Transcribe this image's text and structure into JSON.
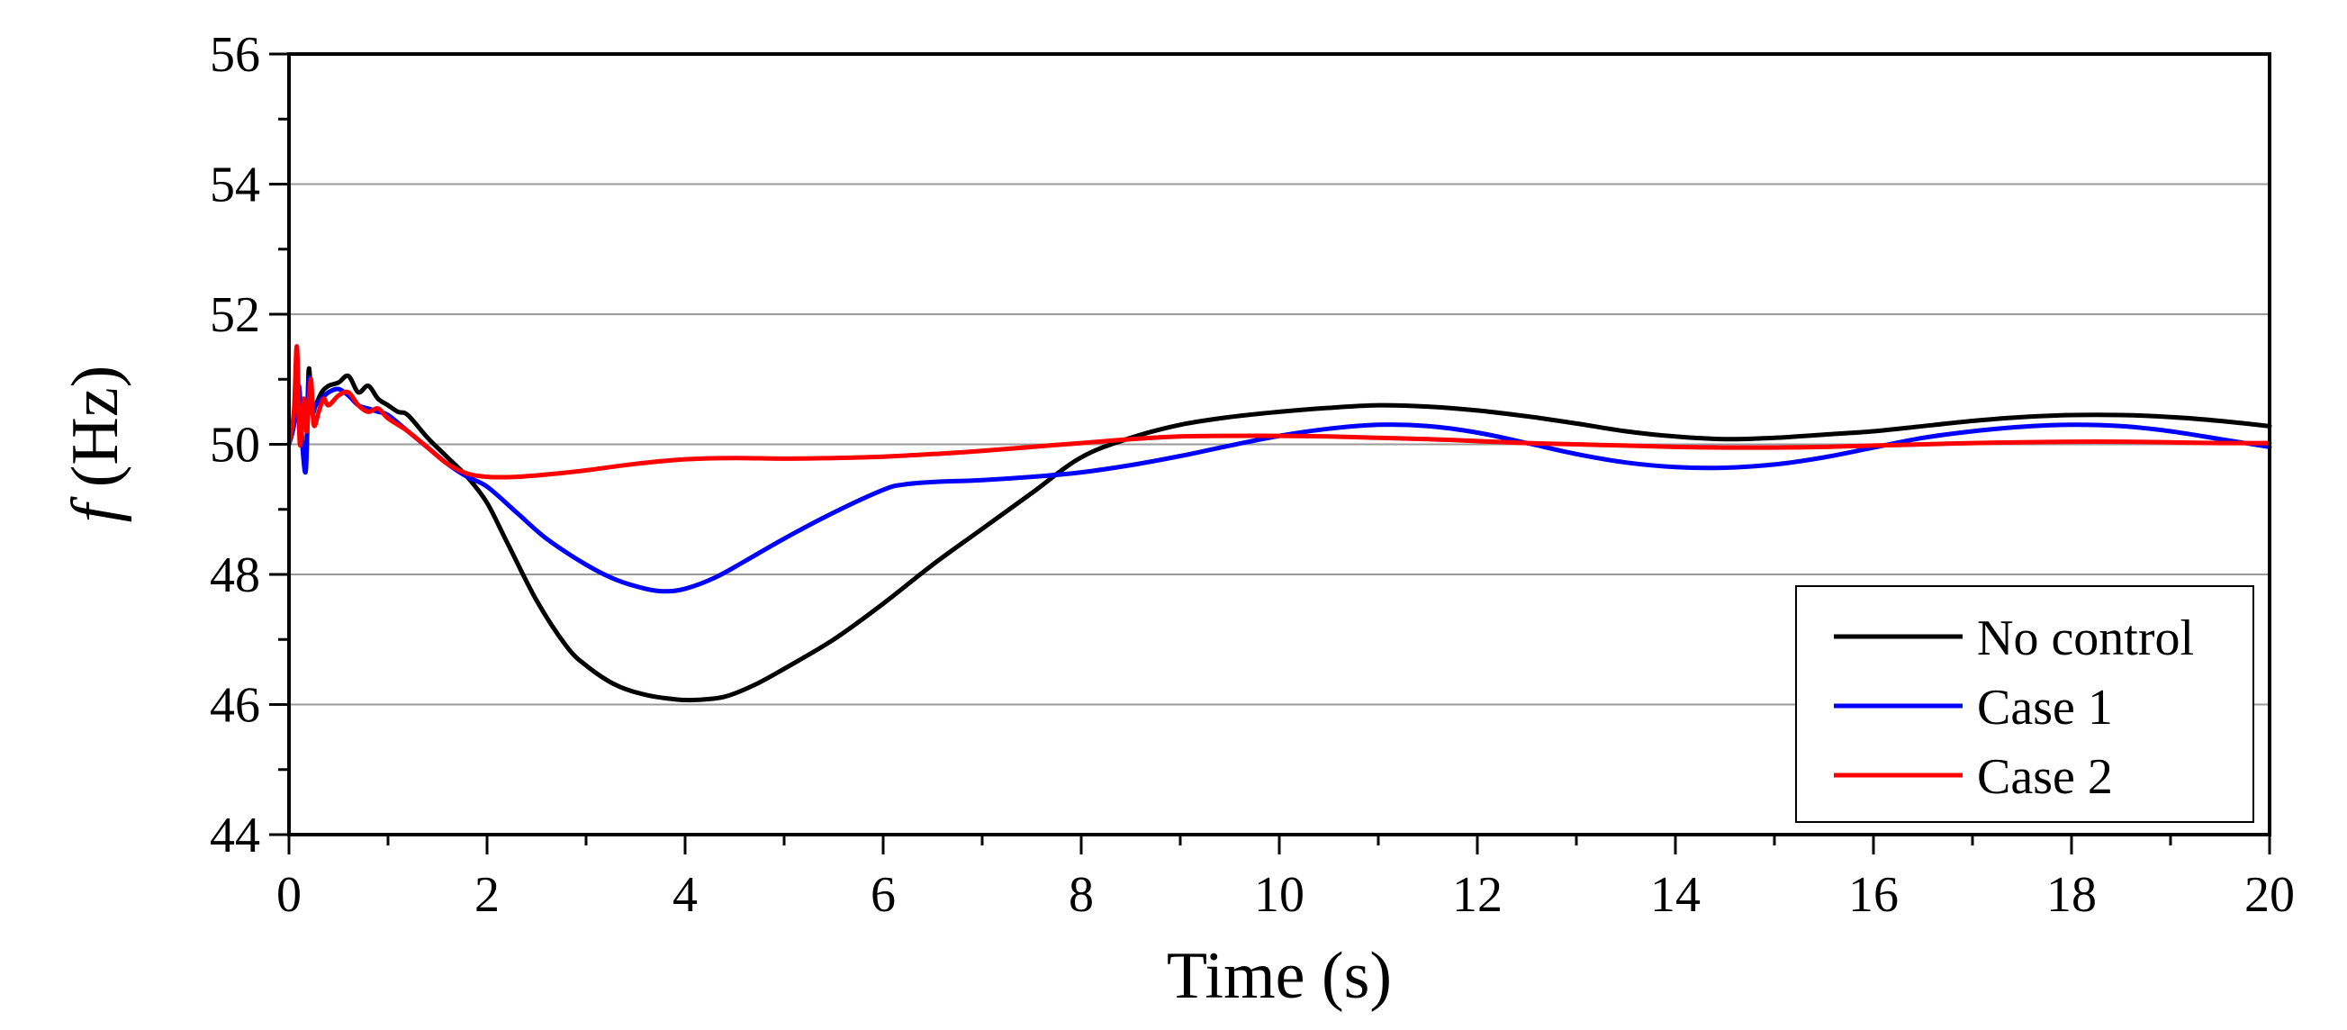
{
  "chart_data": {
    "type": "line",
    "title": "",
    "xlabel": "Time (s)",
    "ylabel_symbol": "f",
    "ylabel_unit": "(Hz)",
    "xlim": [
      0,
      20
    ],
    "ylim": [
      44,
      56
    ],
    "xticks": [
      0,
      2,
      4,
      6,
      8,
      10,
      12,
      14,
      16,
      18,
      20
    ],
    "yticks": [
      44,
      46,
      48,
      50,
      52,
      54,
      56
    ],
    "xtick_labels": [
      "0",
      "2",
      "4",
      "6",
      "8",
      "10",
      "12",
      "14",
      "16",
      "18",
      "20"
    ],
    "ytick_labels": [
      "44",
      "46",
      "48",
      "50",
      "52",
      "54",
      "56"
    ],
    "grid": "horizontal",
    "legend_position": "bottom-right",
    "series": [
      {
        "name": "No control",
        "color": "#000000",
        "x": [
          0,
          0.05,
          0.1,
          0.13,
          0.17,
          0.2,
          0.23,
          0.27,
          0.33,
          0.4,
          0.5,
          0.6,
          0.7,
          0.8,
          0.9,
          1.0,
          1.1,
          1.2,
          1.4,
          1.6,
          1.8,
          2.0,
          2.2,
          2.5,
          2.8,
          3.0,
          3.3,
          3.6,
          3.9,
          4.1,
          4.4,
          4.7,
          5.0,
          5.5,
          6.0,
          6.5,
          7.0,
          7.5,
          8.0,
          8.5,
          9.0,
          9.5,
          10.0,
          10.5,
          11.0,
          11.5,
          12.0,
          12.5,
          13.0,
          13.5,
          14.0,
          14.5,
          15.0,
          15.5,
          16.0,
          16.5,
          17.0,
          17.5,
          18.0,
          18.5,
          19.0,
          19.5,
          20.0
        ],
        "y": [
          50.0,
          50.3,
          50.9,
          50.1,
          49.7,
          51.15,
          50.5,
          50.6,
          50.8,
          50.9,
          50.95,
          51.05,
          50.8,
          50.9,
          50.7,
          50.6,
          50.5,
          50.45,
          50.1,
          49.8,
          49.5,
          49.1,
          48.5,
          47.6,
          46.9,
          46.6,
          46.3,
          46.15,
          46.08,
          46.07,
          46.12,
          46.3,
          46.55,
          47.0,
          47.55,
          48.15,
          48.7,
          49.25,
          49.8,
          50.1,
          50.3,
          50.42,
          50.5,
          50.56,
          50.6,
          50.58,
          50.52,
          50.43,
          50.32,
          50.2,
          50.12,
          50.08,
          50.1,
          50.15,
          50.2,
          50.28,
          50.36,
          50.42,
          50.45,
          50.45,
          50.42,
          50.36,
          50.28
        ]
      },
      {
        "name": "Case 1",
        "color": "#0000ff",
        "x": [
          0,
          0.05,
          0.1,
          0.13,
          0.17,
          0.2,
          0.23,
          0.27,
          0.33,
          0.4,
          0.5,
          0.6,
          0.7,
          0.8,
          0.9,
          1.0,
          1.2,
          1.4,
          1.6,
          1.8,
          2.0,
          2.3,
          2.6,
          3.0,
          3.3,
          3.6,
          3.8,
          4.0,
          4.3,
          4.6,
          5.0,
          5.5,
          6.0,
          6.2,
          6.5,
          7.0,
          7.5,
          8.0,
          8.5,
          9.0,
          9.5,
          10.0,
          10.5,
          11.0,
          11.5,
          12.0,
          12.5,
          13.0,
          13.5,
          14.0,
          14.5,
          15.0,
          15.5,
          16.0,
          16.5,
          17.0,
          17.5,
          18.0,
          18.5,
          19.0,
          19.5,
          20.0
        ],
        "y": [
          50.0,
          50.3,
          50.9,
          50.1,
          49.6,
          51.0,
          50.5,
          50.6,
          50.7,
          50.8,
          50.85,
          50.75,
          50.6,
          50.55,
          50.5,
          50.45,
          50.2,
          49.95,
          49.7,
          49.5,
          49.35,
          48.95,
          48.55,
          48.15,
          47.92,
          47.78,
          47.74,
          47.78,
          47.95,
          48.2,
          48.55,
          48.95,
          49.3,
          49.38,
          49.42,
          49.45,
          49.5,
          49.57,
          49.68,
          49.82,
          49.98,
          50.13,
          50.24,
          50.3,
          50.28,
          50.18,
          50.02,
          49.85,
          49.72,
          49.65,
          49.64,
          49.69,
          49.8,
          49.95,
          50.1,
          50.2,
          50.27,
          50.3,
          50.28,
          50.2,
          50.08,
          49.96
        ]
      },
      {
        "name": "Case 2",
        "color": "#ff0000",
        "x": [
          0,
          0.05,
          0.08,
          0.11,
          0.15,
          0.18,
          0.22,
          0.25,
          0.3,
          0.35,
          0.4,
          0.5,
          0.6,
          0.7,
          0.8,
          0.9,
          1.0,
          1.2,
          1.4,
          1.6,
          1.8,
          2.0,
          2.3,
          2.7,
          3.0,
          3.5,
          4.0,
          4.5,
          5.0,
          5.5,
          6.0,
          6.5,
          7.0,
          7.5,
          8.0,
          8.5,
          9.0,
          9.5,
          10.0,
          10.5,
          11.0,
          11.5,
          12.0,
          12.5,
          13.0,
          13.5,
          14.0,
          14.5,
          15.0,
          15.5,
          16.0,
          16.5,
          17.0,
          17.5,
          18.0,
          18.5,
          19.0,
          19.5,
          20.0
        ],
        "y": [
          50.0,
          50.5,
          51.5,
          50.0,
          50.7,
          50.2,
          51.0,
          50.3,
          50.5,
          50.7,
          50.6,
          50.75,
          50.8,
          50.6,
          50.5,
          50.55,
          50.4,
          50.2,
          49.95,
          49.7,
          49.55,
          49.5,
          49.5,
          49.55,
          49.6,
          49.7,
          49.77,
          49.79,
          49.78,
          49.79,
          49.81,
          49.85,
          49.9,
          49.96,
          50.02,
          50.08,
          50.12,
          50.13,
          50.13,
          50.12,
          50.1,
          50.08,
          50.05,
          50.02,
          50.0,
          49.98,
          49.96,
          49.95,
          49.95,
          49.96,
          49.98,
          50.0,
          50.02,
          50.03,
          50.04,
          50.04,
          50.03,
          50.02,
          50.02
        ]
      }
    ]
  }
}
